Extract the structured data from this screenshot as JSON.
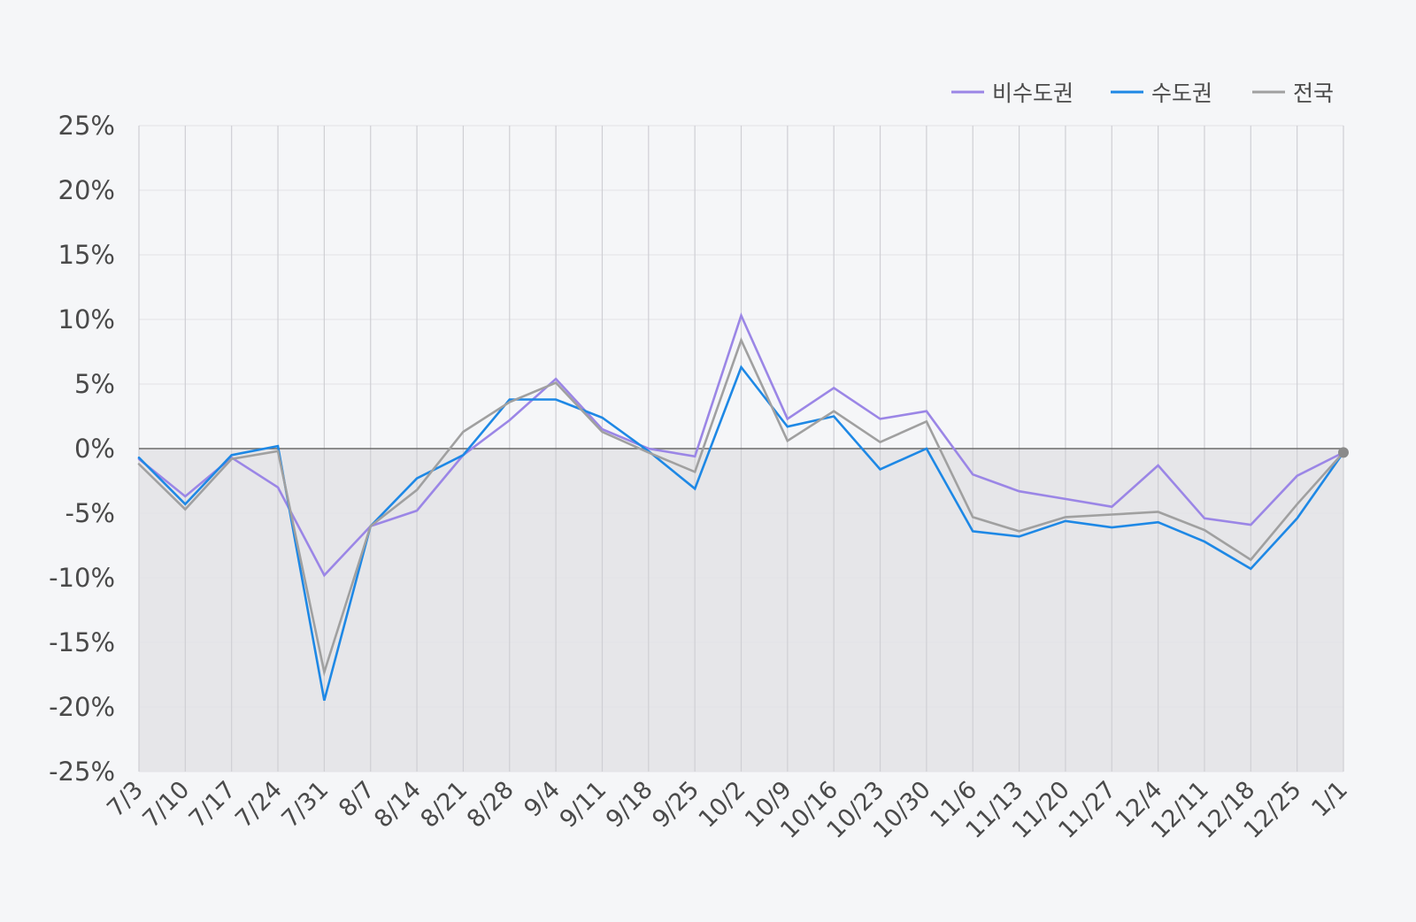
{
  "chart_data": {
    "type": "line",
    "title": "",
    "xlabel": "",
    "ylabel": "",
    "categories": [
      "7/3",
      "7/10",
      "7/17",
      "7/24",
      "7/31",
      "8/7",
      "8/14",
      "8/21",
      "8/28",
      "9/4",
      "9/11",
      "9/18",
      "9/25",
      "10/2",
      "10/9",
      "10/16",
      "10/23",
      "10/30",
      "11/6",
      "11/13",
      "11/20",
      "11/27",
      "12/4",
      "12/11",
      "12/18",
      "12/25",
      "1/1"
    ],
    "yticks": [
      25,
      20,
      15,
      10,
      5,
      0,
      -5,
      -10,
      -15,
      -20,
      -25
    ],
    "ytick_labels": [
      "25%",
      "20%",
      "15%",
      "10%",
      "5%",
      "0%",
      "-5%",
      "-10%",
      "-15%",
      "-20%",
      "-25%"
    ],
    "ylim": [
      -25,
      25
    ],
    "grid": "vertical and horizontal",
    "negative_region_shaded": true,
    "legend_position": "top-right",
    "series": [
      {
        "name": "비수도권",
        "color": "#9b86e6",
        "values": [
          -0.8,
          -3.7,
          -0.7,
          -3.0,
          -9.8,
          -6.0,
          -4.8,
          -0.5,
          2.2,
          5.4,
          1.5,
          0.0,
          -0.6,
          10.3,
          2.3,
          4.7,
          2.3,
          2.9,
          -2.0,
          -3.3,
          -3.9,
          -4.5,
          -1.3,
          -5.4,
          -5.9,
          -2.1,
          -0.3
        ]
      },
      {
        "name": "수도권",
        "color": "#1e88e5",
        "values": [
          -0.7,
          -4.3,
          -0.5,
          0.2,
          -19.5,
          -6.0,
          -2.3,
          -0.5,
          3.8,
          3.8,
          2.4,
          -0.2,
          -3.1,
          6.3,
          1.7,
          2.5,
          -1.6,
          0.0,
          -6.4,
          -6.8,
          -5.6,
          -6.1,
          -5.7,
          -7.2,
          -9.3,
          -5.4,
          -0.3
        ]
      },
      {
        "name": "전국",
        "color": "#a0a0a0",
        "values": [
          -1.2,
          -4.7,
          -0.8,
          -0.2,
          -17.3,
          -6.0,
          -3.2,
          1.3,
          3.6,
          5.1,
          1.3,
          -0.3,
          -1.8,
          8.4,
          0.6,
          2.9,
          0.5,
          2.1,
          -5.3,
          -6.4,
          -5.3,
          -5.1,
          -4.9,
          -6.3,
          -8.6,
          -4.3,
          -0.3
        ]
      }
    ]
  }
}
